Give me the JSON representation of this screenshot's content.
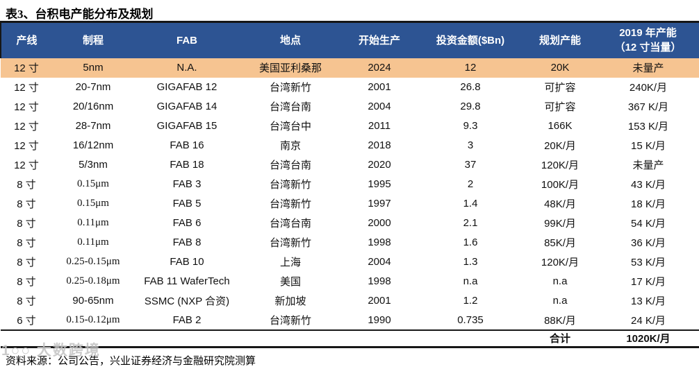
{
  "title": "表3、台积电产能分布及规划",
  "colors": {
    "header_bg": "#2d5493",
    "highlight_bg": "#f6c491",
    "rule": "#161616",
    "watermark": "#c2c2c2"
  },
  "table": {
    "headers": [
      "产线",
      "制程",
      "FAB",
      "地点",
      "开始生产",
      "投资金额($Bn)",
      "规划产能",
      "2019 年产能\n（12 寸当量）"
    ],
    "rows": [
      {
        "highlight": true,
        "cells": [
          "12 寸",
          "5nm",
          "N.A.",
          "美国亚利桑那",
          "2024",
          "12",
          "20K",
          "未量产"
        ]
      },
      {
        "highlight": false,
        "cells": [
          "12 寸",
          "20-7nm",
          "GIGAFAB 12",
          "台湾新竹",
          "2001",
          "26.8",
          "可扩容",
          "240K/月"
        ]
      },
      {
        "highlight": false,
        "cells": [
          "12 寸",
          "20/16nm",
          "GIGAFAB 14",
          "台湾台南",
          "2004",
          "29.8",
          "可扩容",
          "367 K/月"
        ]
      },
      {
        "highlight": false,
        "cells": [
          "12 寸",
          "28-7nm",
          "GIGAFAB 15",
          "台湾台中",
          "2011",
          "9.3",
          "166K",
          "153 K/月"
        ]
      },
      {
        "highlight": false,
        "cells": [
          "12 寸",
          "16/12nm",
          "FAB 16",
          "南京",
          "2018",
          "3",
          "20K/月",
          "15 K/月"
        ]
      },
      {
        "highlight": false,
        "cells": [
          "12 寸",
          "5/3nm",
          "FAB 18",
          "台湾台南",
          "2020",
          "37",
          "120K/月",
          "未量产"
        ]
      },
      {
        "highlight": false,
        "cells": [
          "8 寸",
          "0.15μm",
          "FAB 3",
          "台湾新竹",
          "1995",
          "2",
          "100K/月",
          "43 K/月"
        ]
      },
      {
        "highlight": false,
        "cells": [
          "8 寸",
          "0.15μm",
          "FAB 5",
          "台湾新竹",
          "1997",
          "1.4",
          "48K/月",
          "18 K/月"
        ]
      },
      {
        "highlight": false,
        "cells": [
          "8 寸",
          "0.11μm",
          "FAB 6",
          "台湾台南",
          "2000",
          "2.1",
          "99K/月",
          "54 K/月"
        ]
      },
      {
        "highlight": false,
        "cells": [
          "8 寸",
          "0.11μm",
          "FAB 8",
          "台湾新竹",
          "1998",
          "1.6",
          "85K/月",
          "36 K/月"
        ]
      },
      {
        "highlight": false,
        "cells": [
          "8 寸",
          "0.25-0.15μm",
          "FAB 10",
          "上海",
          "2004",
          "1.3",
          "120K/月",
          "53 K/月"
        ]
      },
      {
        "highlight": false,
        "cells": [
          "8 寸",
          "0.25-0.18μm",
          "FAB 11 WaferTech",
          "美国",
          "1998",
          "n.a",
          "n.a",
          "17 K/月"
        ]
      },
      {
        "highlight": false,
        "cells": [
          "8 寸",
          "90-65nm",
          "SSMC (NXP 合资)",
          "新加坡",
          "2001",
          "1.2",
          "n.a",
          "13 K/月"
        ]
      },
      {
        "highlight": false,
        "cells": [
          "6 寸",
          "0.15-0.12μm",
          "FAB 2",
          "台湾新竹",
          "1990",
          "0.735",
          "88K/月",
          "24 K/月"
        ]
      }
    ],
    "total": {
      "label": "合计",
      "value": "1020K/月"
    }
  },
  "footer": {
    "text": "资料来源：公司公告，兴业证券经济与金融研究院测算"
  },
  "watermark": {
    "logo": "1○○",
    "text": "大数跨境"
  }
}
